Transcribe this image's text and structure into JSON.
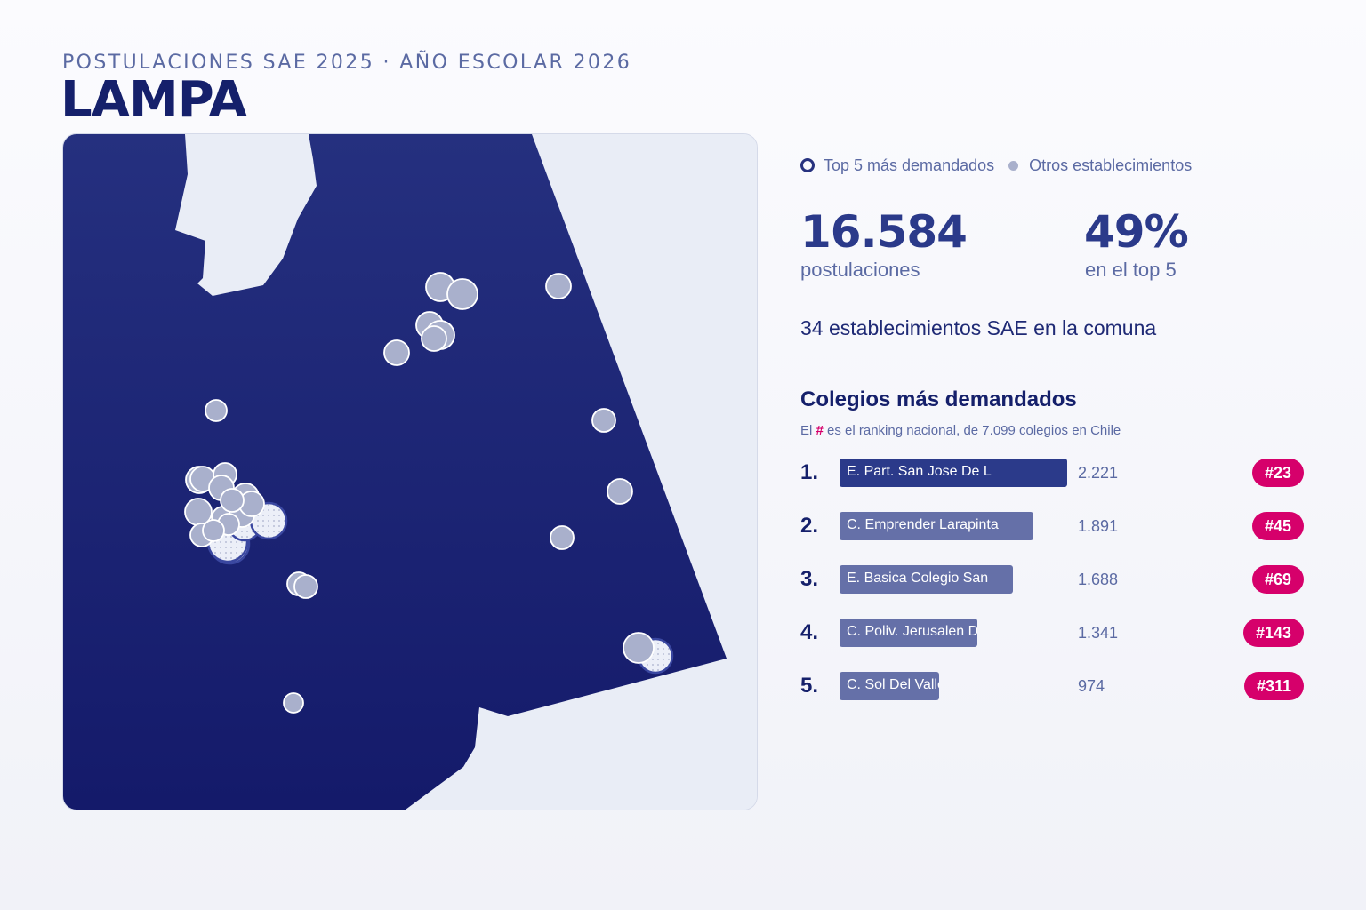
{
  "header": {
    "subtitle": "POSTULACIONES SAE 2025 · AÑO ESCOLAR 2026",
    "title": "LAMPA"
  },
  "legend": {
    "top5_label": "Top 5 más demandados",
    "others_label": "Otros establecimientos"
  },
  "stats": {
    "applications_value": "16.584",
    "applications_label": "postulaciones",
    "top5_share_value": "49%",
    "top5_share_label": "en el top 5",
    "establishments_text": "34 establecimientos SAE en la comuna"
  },
  "ranking": {
    "title": "Colegios más demandados",
    "note_prefix": "El ",
    "note_hash": "#",
    "note_suffix": " es el ranking nacional, de 7.099 colegios en Chile",
    "max_value": 2221,
    "items": [
      {
        "pos": "1.",
        "name": "E. Part. San Jose De L",
        "value": 2221,
        "value_text": "2.221",
        "national_rank": "#23"
      },
      {
        "pos": "2.",
        "name": "C. Emprender Larapinta",
        "value": 1891,
        "value_text": "1.891",
        "national_rank": "#45"
      },
      {
        "pos": "3.",
        "name": "E. Basica Colegio San",
        "value": 1688,
        "value_text": "1.688",
        "national_rank": "#69"
      },
      {
        "pos": "4.",
        "name": "C. Poliv. Jerusalen De",
        "value": 1341,
        "value_text": "1.341",
        "national_rank": "#143"
      },
      {
        "pos": "5.",
        "name": "C. Sol Del Valle",
        "value": 974,
        "value_text": "974",
        "national_rank": "#311"
      }
    ]
  },
  "colors": {
    "map_fill_top": "#25307f",
    "map_fill_bottom": "#141a6a",
    "outside_fill": "#e9edf6",
    "dot_fill": "#a9b0cc",
    "top5_fill": "#e8ebf6",
    "bar_first": "#2b3a8a",
    "bar_others": "#6570a8",
    "badge": "#d6006b"
  }
}
